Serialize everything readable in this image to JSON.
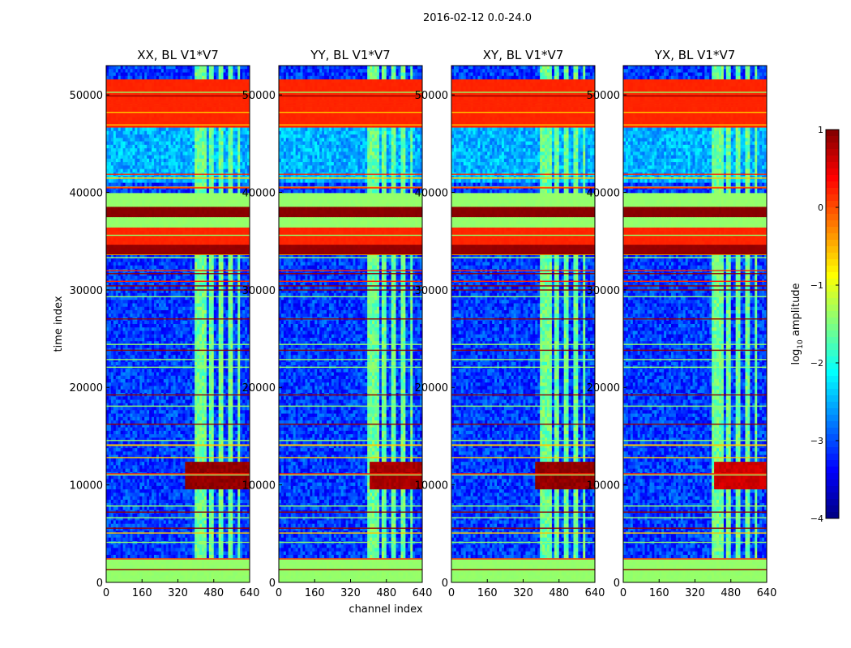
{
  "chart_data": {
    "type": "heatmap",
    "suptitle": "2016-02-12 0.0-24.0",
    "xlabel": "channel index",
    "ylabel": "time index",
    "xlim": [
      0,
      640
    ],
    "ylim": [
      0,
      53000
    ],
    "x_ticks": [
      0,
      160,
      320,
      480,
      640
    ],
    "y_ticks": [
      0,
      10000,
      20000,
      30000,
      40000,
      50000
    ],
    "colorbar": {
      "label": "log10 amplitude",
      "label_main": "log",
      "label_sub": "10",
      "label_rest": " amplitude",
      "range": [
        -4,
        1
      ],
      "ticks": [
        1,
        0,
        -1,
        -2,
        -3,
        -4
      ],
      "tick_labels": [
        "1",
        "0",
        "−1",
        "−2",
        "−3",
        "−4"
      ],
      "colormap": "jet"
    },
    "panels": [
      {
        "title": "XX, BL V1*V7",
        "pol": "XX",
        "burst_center": 440,
        "burst_level": 1.0
      },
      {
        "title": "YY, BL V1*V7",
        "pol": "YY",
        "burst_center": 500,
        "burst_level": 0.9
      },
      {
        "title": "XY, BL V1*V7",
        "pol": "XY",
        "burst_center": 460,
        "burst_level": 1.0
      },
      {
        "title": "YX, BL V1*V7",
        "pol": "YX",
        "burst_center": 500,
        "burst_level": 0.7
      }
    ],
    "rfi_column_ranges": [
      [
        400,
        450
      ],
      [
        460,
        480
      ],
      [
        505,
        520
      ],
      [
        545,
        560
      ],
      [
        590,
        600
      ]
    ],
    "row_bands": [
      {
        "t0": 0,
        "t1": 2500,
        "value": -1.4,
        "label": "low-band green"
      },
      {
        "t0": 46500,
        "t1": 51500,
        "value": 0.2,
        "label": "flagged orange"
      },
      {
        "t0": 33500,
        "t1": 34500,
        "value": 0.9,
        "label": "flagged red"
      },
      {
        "t0": 34500,
        "t1": 36500,
        "value": 0.2,
        "label": "flagged orange"
      },
      {
        "t0": 36500,
        "t1": 37500,
        "value": -1.4,
        "label": "green"
      },
      {
        "t0": 37500,
        "t1": 38500,
        "value": 0.95,
        "label": "flagged red"
      },
      {
        "t0": 38500,
        "t1": 40000,
        "value": -1.4,
        "label": "green"
      }
    ]
  }
}
